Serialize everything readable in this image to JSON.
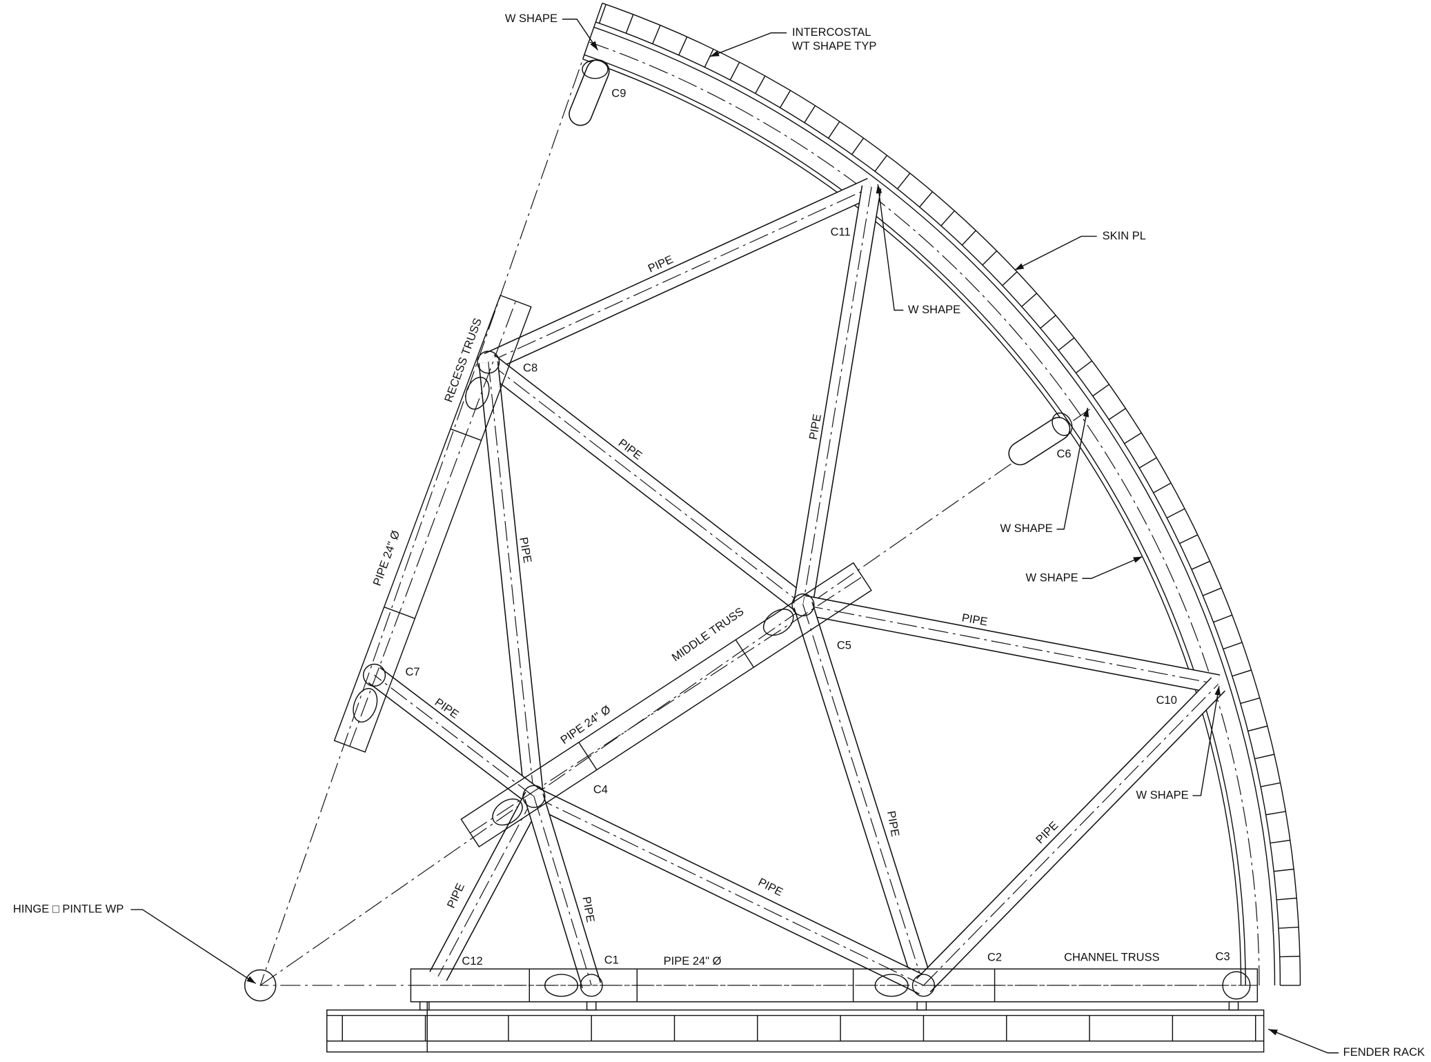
{
  "labels": [
    "W SHAPE",
    "INTERCOSTAL",
    "WT SHAPE TYP",
    "C9",
    "SKIN PL",
    "C11",
    "W SHAPE",
    "PIPE",
    "RECESS TRUSS",
    "C8",
    "PIPE",
    "PIPE",
    "C6",
    "W SHAPE",
    "PIPE",
    "PIPE 24\" Ø",
    "W SHAPE",
    "MIDDLE TRUSS",
    "PIPE",
    "C5",
    "C7",
    "PIPE",
    "C10",
    "PIPE 24\" Ø",
    "C4",
    "W SHAPE",
    "PIPE",
    "PIPE",
    "PIPE",
    "PIPE",
    "PIPE",
    "HINGE □ PINTLE WP",
    "C12",
    "C1",
    "PIPE 24\" Ø",
    "C2",
    "CHANNEL TRUSS",
    "C3",
    "FENDER RACK"
  ]
}
